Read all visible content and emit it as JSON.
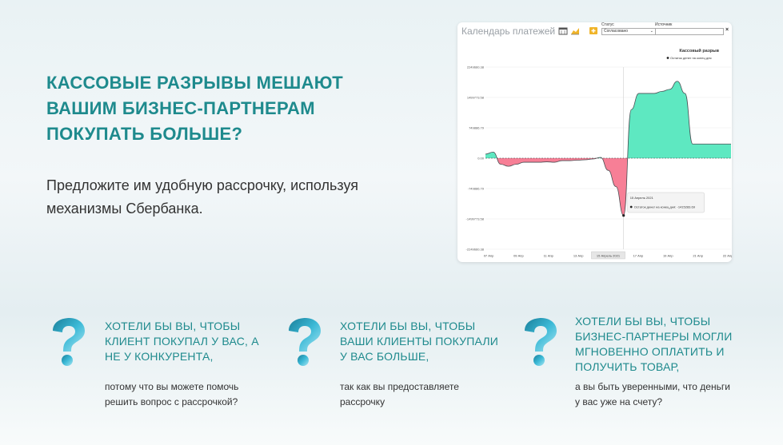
{
  "headline": "КАССОВЫЕ РАЗРЫВЫ МЕШАЮТ ВАШИМ БИЗНЕС-ПАРТНЕРАМ ПОКУПАТЬ БОЛЬШЕ?",
  "subline": "Предложите им удобную рассрочку, используя механизмы Сбербанка.",
  "screenshot": {
    "title": "Календарь платежей",
    "status_label": "Статус",
    "status_value": "Согласовано",
    "source_label": "Источник",
    "close_label": "×"
  },
  "chart_data": {
    "type": "area",
    "title": "Кассовый разрыв",
    "legend": "Остаток денег на конец дня",
    "legend_position": "top-right",
    "y_ticks": [
      "2249660.38",
      "1499773.58",
      "749886.79",
      "0.00",
      "-749886.79",
      "-1499773.58",
      "-2249660.38"
    ],
    "ylim": [
      -2249660.38,
      2249660.38
    ],
    "x_ticks": [
      "07 Апр",
      "09 Апр",
      "11 Апр",
      "13 Апр",
      "15 Апрель 2021",
      "17 Апр",
      "19 Апр",
      "21 Апр",
      "22 Апр"
    ],
    "series": [
      {
        "x": [
          0,
          0.5,
          1,
          1.5,
          2,
          2.5,
          3,
          3.5,
          4,
          4.5,
          5,
          5.5,
          6,
          6.5,
          7,
          7.5,
          8,
          8.5,
          9,
          9.5,
          10,
          10.5,
          11,
          11.5,
          12,
          12.5,
          13,
          13.5,
          14,
          14.5,
          15,
          15.5,
          16
        ],
        "values": [
          100000,
          150000,
          -150000,
          -200000,
          -150000,
          -100000,
          -100000,
          -100000,
          -90000,
          -100000,
          -60000,
          -60000,
          -50000,
          -40000,
          -20000,
          20000,
          -300000,
          -700000,
          -1415283.69,
          1200000,
          1600000,
          1600000,
          1600000,
          1650000,
          1700000,
          1900000,
          1600000,
          350000,
          350000,
          350000,
          350000,
          350000,
          350000
        ]
      }
    ],
    "tooltip": {
      "date": "15 Апрель 2021",
      "label": "Остаток денег на конец дня",
      "value": "-1415283.69"
    },
    "highlight_tick": "15 Апрель 2021",
    "colors": {
      "positive": "#5ee8c1",
      "negative": "#f77f96",
      "line": "#4b4f54"
    }
  },
  "questions": [
    {
      "title": "ХОТЕЛИ БЫ ВЫ, ЧТОБЫ КЛИЕНТ ПОКУПАЛ У ВАС, А НЕ У КОНКУРЕНТА,",
      "text": "потому что вы можете помочь решить вопрос с рассрочкой?"
    },
    {
      "title": "ХОТЕЛИ БЫ ВЫ, ЧТОБЫ ВАШИ КЛИЕНТЫ ПОКУПАЛИ У ВАС БОЛЬШЕ,",
      "text": "так как вы предоставляете рассрочку"
    },
    {
      "title": "ХОТЕЛИ БЫ ВЫ, ЧТОБЫ БИЗНЕС-ПАРТНЕРЫ МОГЛИ МГНОВЕННО ОПЛАТИТЬ И ПОЛУЧИТЬ ТОВАР,",
      "text": "а вы быть уверенными, что деньги у вас уже на счету?"
    }
  ],
  "colors": {
    "accent": "#1e8a8d",
    "qmark": "#2aa7c2"
  }
}
